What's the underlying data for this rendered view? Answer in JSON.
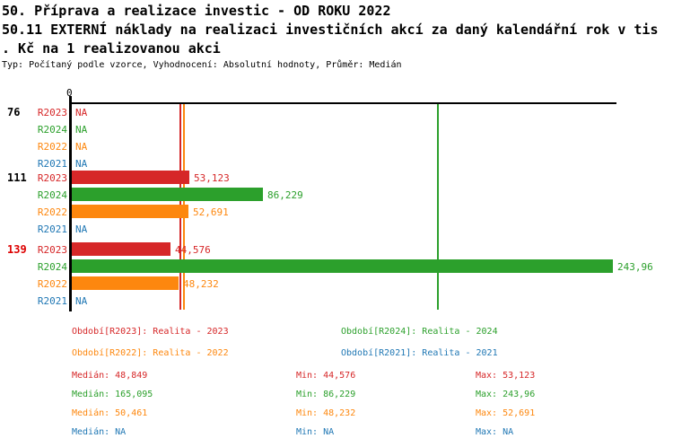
{
  "header": {
    "title": "50. Příprava a realizace investic - OD ROKU 2022",
    "subtitle_line1": "50.11 EXTERNÍ náklady na realizaci investičních akcí za daný kalendářní rok v tis",
    "subtitle_line2": ". Kč na 1 realizovanou akci",
    "meta": "Typ: Počítaný podle vzorce, Vyhodnocení: Absolutní hodnoty, Průměr: Medián"
  },
  "colors": {
    "R2023": "#d62728",
    "R2024": "#2ca02c",
    "R2022": "#fd870e",
    "R2021": "#1f77b4",
    "axis": "#000000",
    "group_label_default": "#000000",
    "group_label_highlight": "#dd0000"
  },
  "chart_data": {
    "type": "bar",
    "orientation": "horizontal",
    "title": "50.11 EXTERNÍ náklady na realizaci investičních akcí za daný kalendářní rok v tis. Kč na 1 realizovanou akci",
    "xlim": [
      0,
      246
    ],
    "zero_tick_label": "0",
    "na_text": "NA",
    "series_order": [
      "R2023",
      "R2024",
      "R2022",
      "R2021"
    ],
    "groups": [
      {
        "label": "76",
        "highlight": false,
        "rows": [
          {
            "series": "R2023",
            "value": null,
            "display": "NA"
          },
          {
            "series": "R2024",
            "value": null,
            "display": "NA"
          },
          {
            "series": "R2022",
            "value": null,
            "display": "NA"
          },
          {
            "series": "R2021",
            "value": null,
            "display": "NA"
          }
        ]
      },
      {
        "label": "111",
        "highlight": false,
        "rows": [
          {
            "series": "R2023",
            "value": 53.123,
            "display": "53,123"
          },
          {
            "series": "R2024",
            "value": 86.229,
            "display": "86,229"
          },
          {
            "series": "R2022",
            "value": 52.691,
            "display": "52,691"
          },
          {
            "series": "R2021",
            "value": null,
            "display": "NA"
          }
        ]
      },
      {
        "label": "139",
        "highlight": true,
        "rows": [
          {
            "series": "R2023",
            "value": 44.576,
            "display": "44,576"
          },
          {
            "series": "R2024",
            "value": 243.96,
            "display": "243,96"
          },
          {
            "series": "R2022",
            "value": 48.232,
            "display": "48,232"
          },
          {
            "series": "R2021",
            "value": null,
            "display": "NA"
          }
        ]
      }
    ],
    "median_lines": [
      {
        "series": "R2023",
        "value": 48.849
      },
      {
        "series": "R2022",
        "value": 50.461
      },
      {
        "series": "R2024",
        "value": 165.095
      }
    ]
  },
  "legend": {
    "items": [
      {
        "series": "R2023",
        "label": "Období[R2023]: Realita - 2023",
        "col": 0,
        "row": 0
      },
      {
        "series": "R2024",
        "label": "Období[R2024]: Realita - 2024",
        "col": 1,
        "row": 0
      },
      {
        "series": "R2022",
        "label": "Období[R2022]: Realita - 2022",
        "col": 0,
        "row": 1
      },
      {
        "series": "R2021",
        "label": "Období[R2021]: Realita - 2021",
        "col": 1,
        "row": 1
      }
    ]
  },
  "stats": {
    "labels": {
      "median": "Medián:",
      "min": "Min:",
      "max": "Max:"
    },
    "rows": [
      {
        "series": "R2023",
        "median": "48,849",
        "min": "44,576",
        "max": "53,123"
      },
      {
        "series": "R2024",
        "median": "165,095",
        "min": "86,229",
        "max": "243,96"
      },
      {
        "series": "R2022",
        "median": "50,461",
        "min": "48,232",
        "max": "52,691"
      },
      {
        "series": "R2021",
        "median": "NA",
        "min": "NA",
        "max": "NA"
      }
    ]
  }
}
